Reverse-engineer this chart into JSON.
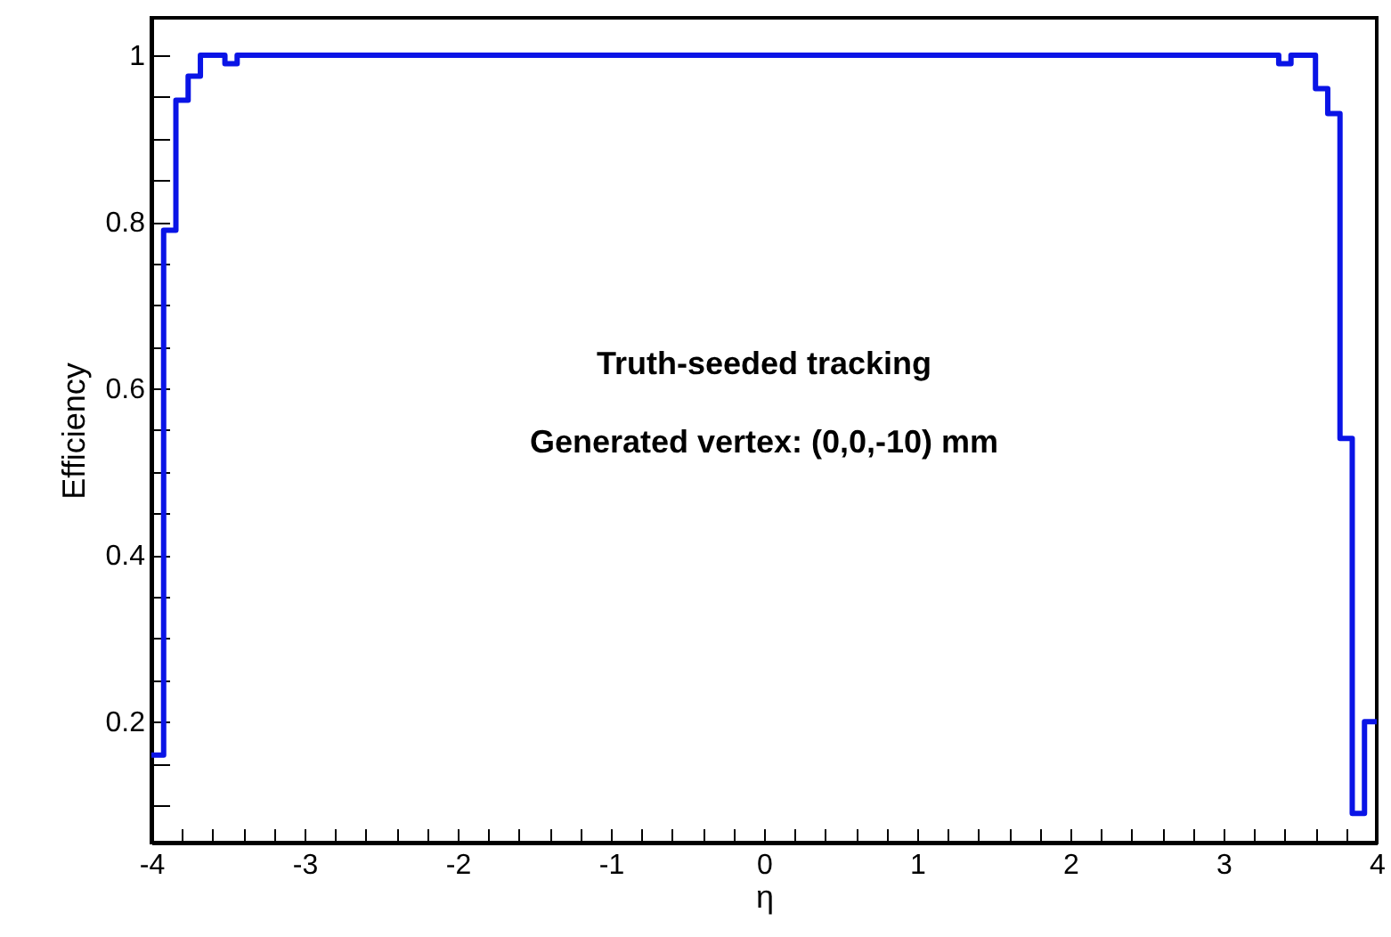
{
  "chart_data": {
    "type": "histogram",
    "xlabel": "η",
    "ylabel": "Efficiency",
    "color": "#0a14e6",
    "bins": [
      -4,
      -3.92,
      -3.84,
      -3.76,
      -3.68,
      -3.6,
      -3.52,
      -3.44,
      -3.36,
      -3.28,
      -3.2,
      -3.12,
      -3.04,
      -2.96,
      -2.88,
      -2.8,
      -2.72,
      -2.64,
      -2.56,
      -2.48,
      -2.4,
      -2.32,
      -2.24,
      -2.16,
      -2.08,
      -2,
      -1.92,
      -1.84,
      -1.76,
      -1.68,
      -1.6,
      -1.52,
      -1.44,
      -1.36,
      -1.28,
      -1.2,
      -1.12,
      -1.04,
      -0.96,
      -0.88,
      -0.8,
      -0.72,
      -0.64,
      -0.56,
      -0.48,
      -0.4,
      -0.32,
      -0.24,
      -0.16,
      -0.08,
      0,
      0.08,
      0.16,
      0.24,
      0.32,
      0.4,
      0.48,
      0.56,
      0.64,
      0.72,
      0.8,
      0.88,
      0.96,
      1.04,
      1.12,
      1.2,
      1.28,
      1.36,
      1.44,
      1.52,
      1.6,
      1.68,
      1.76,
      1.84,
      1.92,
      2,
      2.08,
      2.16,
      2.24,
      2.32,
      2.4,
      2.48,
      2.56,
      2.64,
      2.72,
      2.8,
      2.88,
      2.96,
      3.04,
      3.12,
      3.2,
      3.28,
      3.36,
      3.44,
      3.52,
      3.6,
      3.68,
      3.76,
      3.84,
      3.92,
      4
    ],
    "values": [
      0.16,
      0.79,
      0.946,
      0.975,
      1,
      1,
      0.99,
      1,
      1,
      1,
      1,
      1,
      1,
      1,
      1,
      1,
      1,
      1,
      1,
      1,
      1,
      1,
      1,
      1,
      1,
      1,
      1,
      1,
      1,
      1,
      1,
      1,
      1,
      1,
      1,
      1,
      1,
      1,
      1,
      1,
      1,
      1,
      1,
      1,
      1,
      1,
      1,
      1,
      1,
      1,
      1,
      1,
      1,
      1,
      1,
      1,
      1,
      1,
      1,
      1,
      1,
      1,
      1,
      1,
      1,
      1,
      1,
      1,
      1,
      1,
      1,
      1,
      1,
      1,
      1,
      1,
      1,
      1,
      1,
      1,
      1,
      1,
      1,
      1,
      1,
      1,
      1,
      1,
      1,
      1,
      1,
      1,
      0.99,
      1,
      1,
      0.96,
      0.93,
      0.54,
      0.09,
      0.2
    ],
    "xlim": [
      -4,
      4
    ],
    "xticks": [
      -4,
      {
        "value": -3.8,
        "label": null
      },
      {
        "value": -3.6,
        "label": null
      },
      {
        "value": -3.4,
        "label": null
      },
      {
        "value": -3.2,
        "label": null
      },
      -3,
      {
        "value": -2.8,
        "label": null
      },
      {
        "value": -2.6,
        "label": null
      },
      {
        "value": -2.4,
        "label": null
      },
      {
        "value": -2.2,
        "label": null
      },
      -2,
      {
        "value": -1.8,
        "label": null
      },
      {
        "value": -1.6,
        "label": null
      },
      {
        "value": -1.4,
        "label": null
      },
      {
        "value": -1.2,
        "label": null
      },
      -1,
      {
        "value": -0.8,
        "label": null
      },
      {
        "value": -0.6,
        "label": null
      },
      {
        "value": -0.4,
        "label": null
      },
      {
        "value": -0.2,
        "label": null
      },
      0,
      {
        "value": 0.2,
        "label": null
      },
      {
        "value": 0.4,
        "label": null
      },
      {
        "value": 0.6,
        "label": null
      },
      {
        "value": 0.8,
        "label": null
      },
      1,
      {
        "value": 1.2,
        "label": null
      },
      {
        "value": 1.4,
        "label": null
      },
      {
        "value": 1.6,
        "label": null
      },
      {
        "value": 1.8,
        "label": null
      },
      2,
      {
        "value": 2.2,
        "label": null
      },
      {
        "value": 2.4,
        "label": null
      },
      {
        "value": 2.6,
        "label": null
      },
      {
        "value": 2.8,
        "label": null
      },
      3,
      {
        "value": 3.2,
        "label": null
      },
      {
        "value": 3.4,
        "label": null
      },
      {
        "value": 3.6,
        "label": null
      },
      {
        "value": 3.8,
        "label": null
      },
      4
    ],
    "ylim": [
      0.055,
      1.045
    ],
    "yticks": [
      {
        "value": 0.1,
        "label": null
      },
      {
        "value": 0.15,
        "label": null
      },
      0.2,
      {
        "value": 0.25,
        "label": null
      },
      {
        "value": 0.3,
        "label": null
      },
      {
        "value": 0.35,
        "label": null
      },
      0.4,
      {
        "value": 0.45,
        "label": null
      },
      {
        "value": 0.5,
        "label": null
      },
      {
        "value": 0.55,
        "label": null
      },
      0.6,
      {
        "value": 0.65,
        "label": null
      },
      {
        "value": 0.7,
        "label": null
      },
      {
        "value": 0.75,
        "label": null
      },
      0.8,
      {
        "value": 0.85,
        "label": null
      },
      {
        "value": 0.9,
        "label": null
      },
      {
        "value": 0.95,
        "label": null
      },
      1
    ],
    "annotations": [
      "Truth-seeded tracking",
      "Generated vertex: (0,0,-10) mm"
    ],
    "grid": false
  }
}
